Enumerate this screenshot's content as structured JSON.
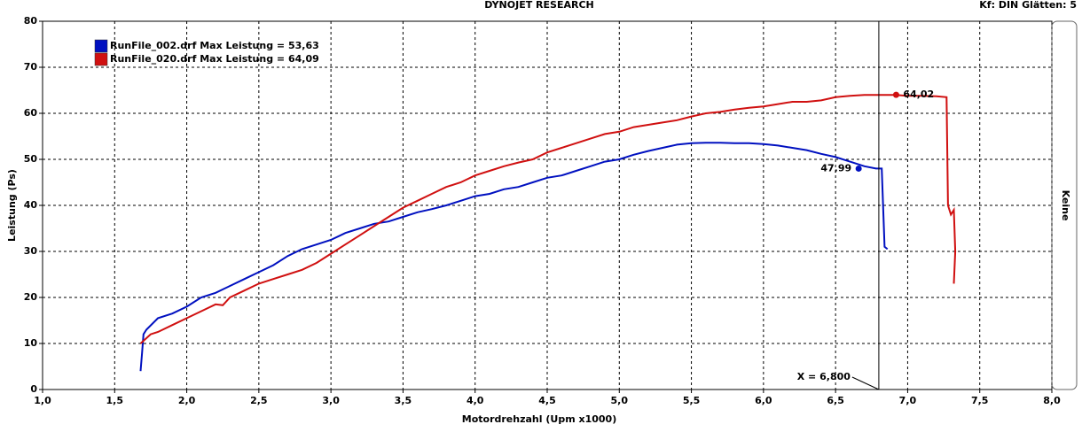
{
  "chart_data": {
    "type": "line",
    "title": "DYNOJET RESEARCH",
    "subtitle": "Kf: DIN  Glätten: 5",
    "right_label": "Keine",
    "x_label": "Motordrehzahl (Upm x1000)",
    "y_label": "Leistung (Ps)",
    "xlim": [
      1.0,
      8.0
    ],
    "ylim": [
      0,
      80
    ],
    "xticks": [
      {
        "value": 1.0,
        "label": "1,0"
      },
      {
        "value": 1.5,
        "label": "1,5"
      },
      {
        "value": 2.0,
        "label": "2,0"
      },
      {
        "value": 2.5,
        "label": "2,5"
      },
      {
        "value": 3.0,
        "label": "3,0"
      },
      {
        "value": 3.5,
        "label": "3,5"
      },
      {
        "value": 4.0,
        "label": "4,0"
      },
      {
        "value": 4.5,
        "label": "4,5"
      },
      {
        "value": 5.0,
        "label": "5,0"
      },
      {
        "value": 5.5,
        "label": "5,5"
      },
      {
        "value": 6.0,
        "label": "6,0"
      },
      {
        "value": 6.5,
        "label": "6,5"
      },
      {
        "value": 7.0,
        "label": "7,0"
      },
      {
        "value": 7.5,
        "label": "7,5"
      },
      {
        "value": 8.0,
        "label": "8,0"
      }
    ],
    "yticks": [
      0,
      10,
      20,
      30,
      40,
      50,
      60,
      70,
      80
    ],
    "grid": true,
    "series": [
      {
        "name": "RunFile_002.drf Max Leistung = 53,63",
        "color": "#0010c0",
        "x": [
          1.68,
          1.69,
          1.7,
          1.72,
          1.8,
          1.9,
          2.0,
          2.1,
          2.2,
          2.3,
          2.4,
          2.5,
          2.6,
          2.7,
          2.8,
          2.9,
          3.0,
          3.1,
          3.2,
          3.3,
          3.4,
          3.5,
          3.6,
          3.7,
          3.8,
          3.9,
          4.0,
          4.1,
          4.2,
          4.3,
          4.4,
          4.5,
          4.6,
          4.7,
          4.8,
          4.9,
          5.0,
          5.1,
          5.2,
          5.3,
          5.4,
          5.5,
          5.6,
          5.7,
          5.8,
          5.9,
          6.0,
          6.1,
          6.2,
          6.3,
          6.4,
          6.5,
          6.6,
          6.7,
          6.78,
          6.82,
          6.84,
          6.86
        ],
        "values": [
          4,
          8,
          12,
          13,
          15.5,
          16.5,
          18,
          20,
          21,
          22.5,
          24,
          25.5,
          27,
          29,
          30.5,
          31.5,
          32.5,
          34,
          35,
          36,
          36.5,
          37.5,
          38.5,
          39.2,
          40,
          41,
          42,
          42.5,
          43.5,
          44,
          45,
          46,
          46.5,
          47.5,
          48.5,
          49.5,
          50,
          51,
          51.8,
          52.5,
          53.2,
          53.5,
          53.6,
          53.6,
          53.5,
          53.5,
          53.3,
          53,
          52.5,
          52,
          51.2,
          50.5,
          49.5,
          48.5,
          48,
          48,
          31,
          30.5
        ]
      },
      {
        "name": "RunFile_020.drf Max Leistung = 64,09",
        "color": "#d01010",
        "x": [
          1.68,
          1.75,
          1.8,
          1.9,
          2.0,
          2.1,
          2.2,
          2.25,
          2.3,
          2.4,
          2.5,
          2.6,
          2.7,
          2.8,
          2.9,
          3.0,
          3.1,
          3.2,
          3.3,
          3.4,
          3.5,
          3.6,
          3.7,
          3.8,
          3.9,
          4.0,
          4.1,
          4.2,
          4.3,
          4.4,
          4.5,
          4.6,
          4.7,
          4.8,
          4.9,
          5.0,
          5.1,
          5.2,
          5.3,
          5.4,
          5.5,
          5.6,
          5.7,
          5.8,
          5.9,
          6.0,
          6.1,
          6.2,
          6.3,
          6.4,
          6.5,
          6.6,
          6.7,
          6.8,
          6.9,
          7.0,
          7.1,
          7.2,
          7.27,
          7.28,
          7.3,
          7.32,
          7.33,
          7.32
        ],
        "values": [
          10,
          12,
          12.5,
          14,
          15.5,
          17,
          18.5,
          18.3,
          20,
          21.5,
          23,
          24,
          25,
          26,
          27.5,
          29.5,
          31.5,
          33.5,
          35.5,
          37.5,
          39.5,
          41,
          42.5,
          44,
          45,
          46.5,
          47.5,
          48.5,
          49.3,
          50,
          51.5,
          52.5,
          53.5,
          54.5,
          55.5,
          56,
          57,
          57.5,
          58,
          58.5,
          59.3,
          60,
          60.3,
          60.8,
          61.2,
          61.5,
          62,
          62.5,
          62.5,
          62.8,
          63.5,
          63.8,
          64,
          64,
          64,
          63.8,
          63.8,
          63.7,
          63.5,
          40,
          38,
          39,
          30,
          23
        ]
      }
    ],
    "annotations": [
      {
        "x": 6.66,
        "y": 47.99,
        "label": "47,99",
        "color": "#0010c0"
      },
      {
        "x": 6.92,
        "y": 64.02,
        "label": "64,02",
        "color": "#d01010"
      }
    ],
    "cursor": {
      "x": 6.8,
      "label": "X = 6,800"
    }
  }
}
